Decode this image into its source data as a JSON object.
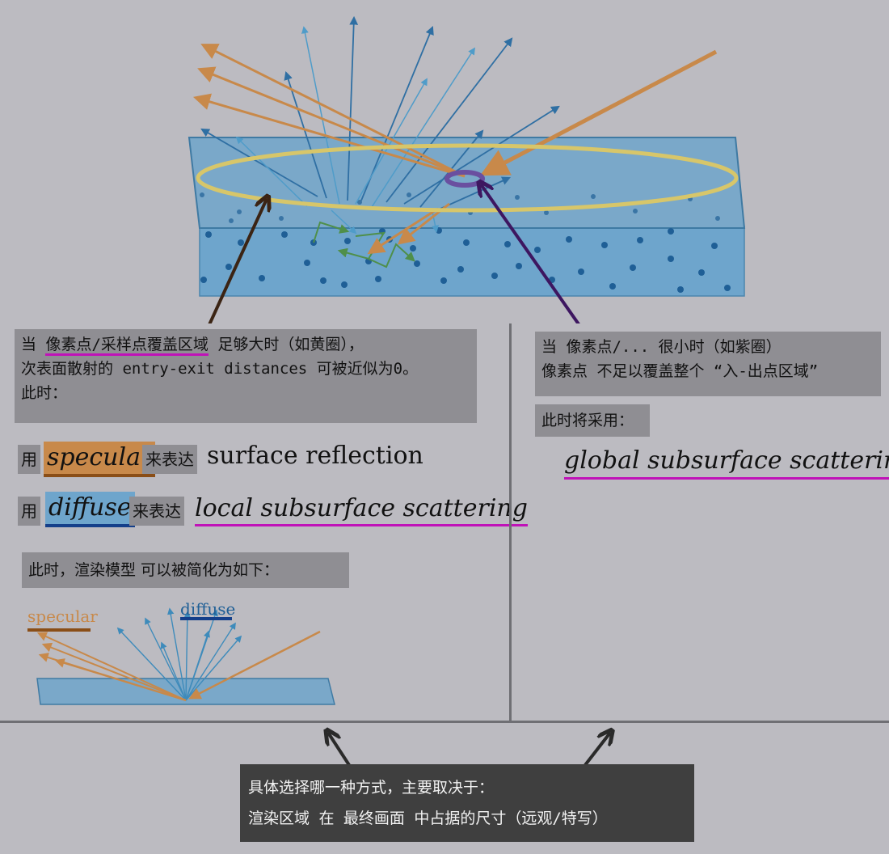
{
  "left_box": {
    "line1_prefix": "当 ",
    "line1_highlight": "像素点/采样点覆盖区域",
    "line1_suffix": " 足够大时（如黄圈），",
    "line2": "次表面散射的 entry-exit distances 可被近似为0。",
    "line3": "此时："
  },
  "right_box": {
    "line1": "当 像素点/... 很小时（如紫圈）",
    "line2": "像素点 不足以覆盖整个 “入-出点区域”"
  },
  "right_now": "此时将采用：",
  "global_term": "global subsurface scattering",
  "row_specular": {
    "use": "用",
    "term": "specular",
    "to_express": "来表达",
    "meaning": "surface reflection"
  },
  "row_diffuse": {
    "use": "用",
    "term": "diffuse",
    "to_express": "来表达",
    "meaning": "local subsurface scattering"
  },
  "simplified": "此时，渲染模型 可以被简化为如下：",
  "small_diagram": {
    "specular_label": "specular",
    "diffuse_label": "diffuse"
  },
  "bottom_box": {
    "line1": "具体选择哪一种方式，主要取决于：",
    "line2": "渲染区域 在 最终画面 中占据的尺寸（远观/特写）"
  },
  "colors": {
    "background": "#bcbbc1",
    "specular": "#c8894a",
    "diffuse": "#3e8bbb",
    "slab": "#6ea5cc",
    "yellow_ring": "#d7c66a",
    "purple_ring": "#6a4fa0",
    "purple_underline": "#c012b8"
  }
}
